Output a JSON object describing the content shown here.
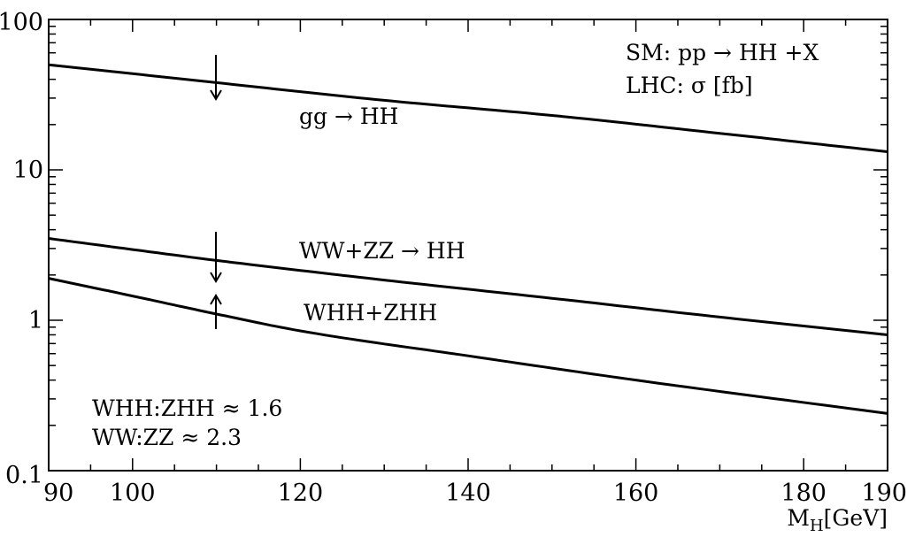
{
  "chart_data": {
    "type": "line",
    "title": "",
    "xlabel": "M",
    "xlabel_sub": "H",
    "xlabel_unit": "[GeV]",
    "ylabel": "",
    "xlim": [
      90,
      190
    ],
    "ylim": [
      0.1,
      100
    ],
    "yscale": "log",
    "x_ticks": [
      90,
      100,
      120,
      140,
      160,
      180,
      190
    ],
    "y_ticks": [
      0.1,
      1,
      10,
      100
    ],
    "y_tick_labels": [
      "0.1",
      "1",
      "10",
      "100"
    ],
    "grid": false,
    "series": [
      {
        "name": "gg → HH",
        "x": [
          90,
          110,
          130,
          150,
          170,
          190
        ],
        "y": [
          50,
          38,
          29,
          23,
          17.5,
          13.2
        ]
      },
      {
        "name": "WW+ZZ → HH",
        "x": [
          90,
          110,
          130,
          150,
          170,
          190
        ],
        "y": [
          3.5,
          2.5,
          1.85,
          1.4,
          1.05,
          0.8
        ]
      },
      {
        "name": "WHH+ZHH",
        "x": [
          90,
          100,
          110,
          120,
          140,
          160,
          190
        ],
        "y": [
          1.9,
          1.45,
          1.1,
          0.85,
          0.58,
          0.4,
          0.24
        ]
      }
    ],
    "annotations": {
      "topright": [
        "SM: pp → HH +X",
        "LHC: σ [fb]"
      ],
      "bottomleft": [
        "WHH:ZHH ≈ 1.6",
        "WW:ZZ ≈ 2.3"
      ]
    }
  }
}
